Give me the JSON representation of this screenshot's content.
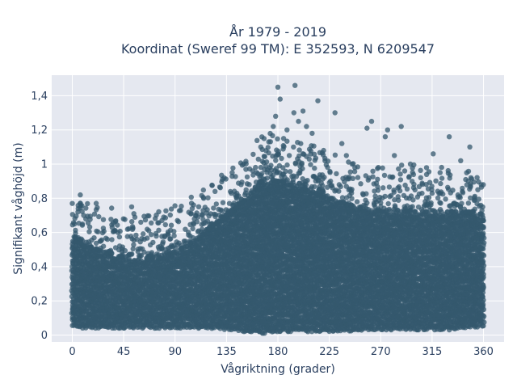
{
  "chart_data": {
    "type": "scatter",
    "title_line1": "År 1979 - 2019",
    "title_line2": "Koordinat (Sweref 99 TM): E 352593, N 6209547",
    "xlabel": "Vågriktning (grader)",
    "ylabel": "Signifikant våghöjd (m)",
    "xlim": [
      -18,
      378
    ],
    "ylim": [
      -0.04,
      1.52
    ],
    "x_ticks": [
      0,
      45,
      90,
      135,
      180,
      225,
      270,
      315,
      360
    ],
    "x_tick_labels": [
      "0",
      "45",
      "90",
      "135",
      "180",
      "225",
      "270",
      "315",
      "360"
    ],
    "y_ticks": [
      0,
      0.2,
      0.4,
      0.6,
      0.8,
      1.0,
      1.2,
      1.4
    ],
    "y_tick_labels": [
      "0",
      "0,2",
      "0,4",
      "0,6",
      "0,8",
      "1",
      "1,2",
      "1,4"
    ],
    "grid": true,
    "colors": {
      "marker": "#34586e",
      "plot_bg": "#e5e8f0",
      "grid": "#ffffff",
      "text": "#2a3f5f"
    },
    "envelope": {
      "direction": [
        0,
        10,
        20,
        30,
        45,
        60,
        75,
        90,
        105,
        120,
        135,
        150,
        160,
        170,
        180,
        190,
        200,
        210,
        225,
        240,
        255,
        270,
        285,
        300,
        315,
        330,
        345,
        360
      ],
      "dense_upper": [
        0.55,
        0.52,
        0.5,
        0.48,
        0.45,
        0.44,
        0.45,
        0.48,
        0.54,
        0.62,
        0.7,
        0.78,
        0.86,
        0.9,
        0.9,
        0.88,
        0.86,
        0.84,
        0.8,
        0.76,
        0.74,
        0.72,
        0.72,
        0.72,
        0.72,
        0.72,
        0.72,
        0.68
      ],
      "dense_lower": [
        0.06,
        0.05,
        0.05,
        0.05,
        0.05,
        0.05,
        0.05,
        0.05,
        0.05,
        0.05,
        0.04,
        0.03,
        0.02,
        0.02,
        0.03,
        0.03,
        0.03,
        0.03,
        0.03,
        0.03,
        0.04,
        0.04,
        0.04,
        0.04,
        0.04,
        0.04,
        0.05,
        0.06
      ]
    },
    "outliers": {
      "x": [
        0,
        2,
        5,
        7,
        10,
        25,
        35,
        40,
        52,
        60,
        80,
        92,
        105,
        115,
        125,
        140,
        150,
        165,
        172,
        176,
        178,
        180,
        182,
        185,
        188,
        190,
        194,
        195,
        198,
        200,
        202,
        205,
        210,
        215,
        220,
        230,
        236,
        240,
        245,
        258,
        262,
        268,
        274,
        276,
        282,
        288,
        296,
        305,
        316,
        322,
        330,
        340,
        348,
        355,
        358
      ],
      "y": [
        0.77,
        0.65,
        0.72,
        0.82,
        0.7,
        0.55,
        0.63,
        0.6,
        0.75,
        0.66,
        0.69,
        0.67,
        0.74,
        0.8,
        0.84,
        0.95,
        1.0,
        1.1,
        1.13,
        1.22,
        1.28,
        1.45,
        1.38,
        1.15,
        1.2,
        1.05,
        1.3,
        1.46,
        1.25,
        1.12,
        1.31,
        1.22,
        1.18,
        1.37,
        1.08,
        1.3,
        1.12,
        1.05,
        1.0,
        1.21,
        1.25,
        0.98,
        1.16,
        1.2,
        1.05,
        1.22,
        1.0,
        0.92,
        1.06,
        0.95,
        1.16,
        1.02,
        1.1,
        0.85,
        0.88
      ]
    }
  }
}
